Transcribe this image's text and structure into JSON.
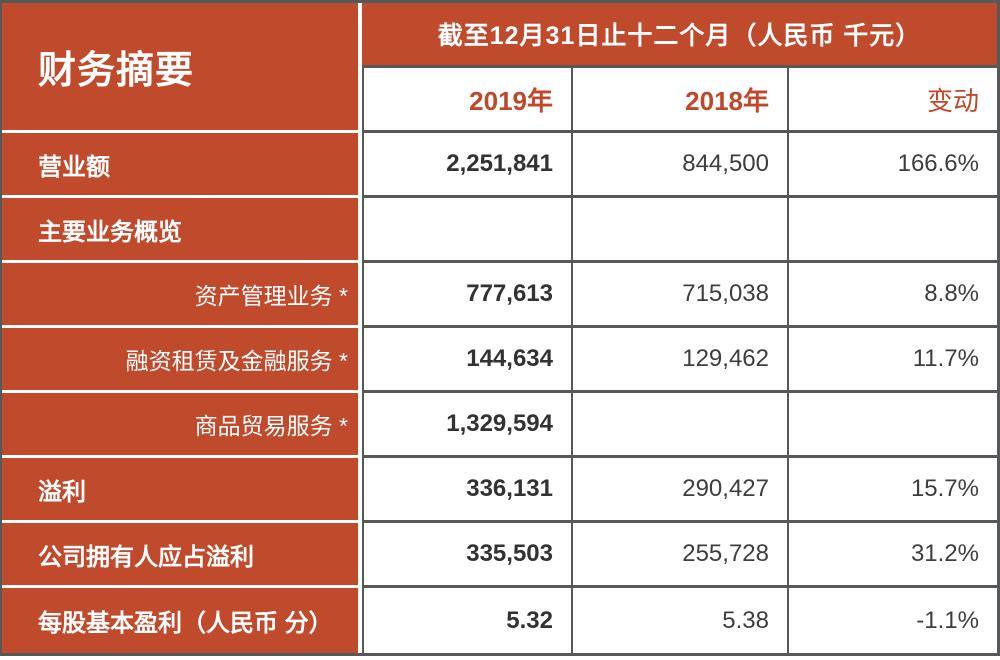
{
  "table": {
    "title": "财务摘要",
    "period_header": "截至12月31日止十二个月（人民币 千元）",
    "col_headers": {
      "y2019": "2019年",
      "y2018": "2018年",
      "change": "变动"
    },
    "rows": [
      {
        "label": "营业额",
        "style": "main",
        "v2019": "2,251,841",
        "v2018": "844,500",
        "change": "166.6%"
      },
      {
        "label": "主要业务概览",
        "style": "main",
        "v2019": "",
        "v2018": "",
        "change": ""
      },
      {
        "label": "资产管理业务 *",
        "style": "sub",
        "v2019": "777,613",
        "v2018": "715,038",
        "change": "8.8%"
      },
      {
        "label": "融资租赁及金融服务 *",
        "style": "sub",
        "v2019": "144,634",
        "v2018": "129,462",
        "change": "11.7%"
      },
      {
        "label": "商品贸易服务 *",
        "style": "sub",
        "v2019": "1,329,594",
        "v2018": "",
        "change": ""
      },
      {
        "label": "溢利",
        "style": "main",
        "v2019": "336,131",
        "v2018": "290,427",
        "change": "15.7%"
      },
      {
        "label": "公司拥有人应占溢利",
        "style": "main",
        "v2019": "335,503",
        "v2018": "255,728",
        "change": "31.2%"
      },
      {
        "label": "每股基本盈利（人民币 分）",
        "style": "main",
        "v2019": "5.32",
        "v2018": "5.38",
        "change": "-1.1%"
      }
    ]
  },
  "colors": {
    "brand_red": "#C04A2C",
    "header_text_red": "#C0482A",
    "border_gray": "#57585A",
    "value_text": "#3E3E3E",
    "label_text": "#FFFFFF"
  }
}
